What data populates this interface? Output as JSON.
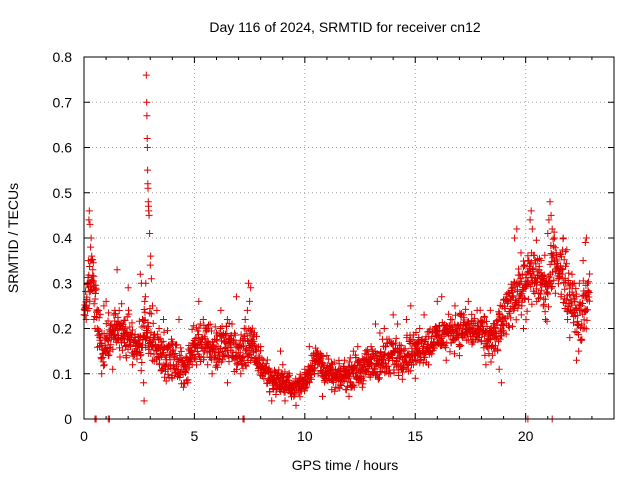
{
  "chart_data": {
    "type": "scatter",
    "title": "Day 116 of 2024, SRMTID for receiver cn12",
    "xlabel": "GPS time / hours",
    "ylabel": "SRMTID / TECUs",
    "xlim": [
      0,
      24
    ],
    "ylim": [
      0,
      0.8
    ],
    "xticks": [
      0,
      5,
      10,
      15,
      20
    ],
    "yticks": [
      0,
      0.1,
      0.2,
      0.3,
      0.4,
      0.5,
      0.6,
      0.7,
      0.8
    ],
    "xtick_labels": [
      "0",
      "5",
      "10",
      "15",
      "20"
    ],
    "ytick_labels": [
      "0",
      "0.1",
      "0.2",
      "0.3",
      "0.4",
      "0.5",
      "0.6",
      "0.7",
      "0.8"
    ],
    "grid": true,
    "marker": "+",
    "color": "#e00000",
    "series": [
      {
        "name": "SRMTID",
        "trend": {
          "x": [
            0,
            0.25,
            0.4,
            0.6,
            0.8,
            1.2,
            1.6,
            2.0,
            2.5,
            2.8,
            3.0,
            3.2,
            3.5,
            4.0,
            4.5,
            5.0,
            5.5,
            6.0,
            6.5,
            7.0,
            7.5,
            8.0,
            8.5,
            9.0,
            9.5,
            10.0,
            10.5,
            11.0,
            11.5,
            12.0,
            13.0,
            14.0,
            15.0,
            16.0,
            17.0,
            18.0,
            18.5,
            19.0,
            19.5,
            20.0,
            20.5,
            21.0,
            21.3,
            21.6,
            22.0,
            22.5,
            22.9
          ],
          "y": [
            0.24,
            0.3,
            0.33,
            0.22,
            0.15,
            0.18,
            0.2,
            0.18,
            0.16,
            0.2,
            0.18,
            0.16,
            0.15,
            0.13,
            0.11,
            0.16,
            0.18,
            0.15,
            0.17,
            0.14,
            0.17,
            0.12,
            0.09,
            0.08,
            0.07,
            0.08,
            0.14,
            0.1,
            0.09,
            0.1,
            0.12,
            0.14,
            0.15,
            0.18,
            0.2,
            0.19,
            0.17,
            0.22,
            0.28,
            0.3,
            0.32,
            0.28,
            0.36,
            0.33,
            0.28,
            0.22,
            0.28
          ],
          "spread": [
            0.03,
            0.06,
            0.06,
            0.06,
            0.05,
            0.05,
            0.05,
            0.05,
            0.05,
            0.07,
            0.06,
            0.05,
            0.05,
            0.05,
            0.04,
            0.05,
            0.05,
            0.05,
            0.05,
            0.05,
            0.05,
            0.04,
            0.03,
            0.03,
            0.02,
            0.03,
            0.03,
            0.03,
            0.03,
            0.03,
            0.04,
            0.05,
            0.04,
            0.04,
            0.04,
            0.04,
            0.05,
            0.05,
            0.06,
            0.07,
            0.07,
            0.06,
            0.06,
            0.07,
            0.07,
            0.07,
            0.07
          ]
        },
        "points": [
          [
            0.05,
            0.24
          ],
          [
            0.1,
            0.22
          ],
          [
            0.15,
            0.3
          ],
          [
            0.2,
            0.35
          ],
          [
            0.22,
            0.44
          ],
          [
            0.24,
            0.46
          ],
          [
            0.27,
            0.43
          ],
          [
            0.3,
            0.38
          ],
          [
            0.32,
            0.4
          ],
          [
            0.35,
            0.36
          ],
          [
            0.4,
            0.33
          ],
          [
            0.42,
            0.29
          ],
          [
            0.45,
            0.22
          ],
          [
            0.5,
            0.2
          ],
          [
            0.6,
            0.2
          ],
          [
            0.7,
            0.16
          ],
          [
            0.8,
            0.1
          ],
          [
            0.9,
            0.25
          ],
          [
            1.0,
            0.26
          ],
          [
            1.1,
            0.14
          ],
          [
            1.3,
            0.11
          ],
          [
            1.4,
            0.24
          ],
          [
            1.5,
            0.33
          ],
          [
            1.6,
            0.21
          ],
          [
            1.7,
            0.18
          ],
          [
            1.9,
            0.14
          ],
          [
            2.0,
            0.29
          ],
          [
            2.1,
            0.16
          ],
          [
            2.2,
            0.12
          ],
          [
            2.4,
            0.15
          ],
          [
            2.5,
            0.16
          ],
          [
            2.55,
            0.32
          ],
          [
            2.6,
            0.3
          ],
          [
            2.65,
            0.22
          ],
          [
            2.7,
            0.08
          ],
          [
            2.72,
            0.04
          ],
          [
            2.75,
            0.26
          ],
          [
            2.78,
            0.27
          ],
          [
            2.8,
            0.3
          ],
          [
            2.82,
            0.76
          ],
          [
            2.84,
            0.7
          ],
          [
            2.85,
            0.67
          ],
          [
            2.86,
            0.62
          ],
          [
            2.87,
            0.6
          ],
          [
            2.88,
            0.55
          ],
          [
            2.89,
            0.52
          ],
          [
            2.9,
            0.51
          ],
          [
            2.91,
            0.48
          ],
          [
            2.92,
            0.47
          ],
          [
            2.93,
            0.46
          ],
          [
            2.95,
            0.45
          ],
          [
            2.97,
            0.41
          ],
          [
            3.0,
            0.34
          ],
          [
            3.02,
            0.36
          ],
          [
            3.05,
            0.31
          ],
          [
            3.1,
            0.25
          ],
          [
            3.3,
            0.24
          ],
          [
            3.4,
            0.2
          ],
          [
            3.5,
            0.17
          ],
          [
            3.6,
            0.22
          ],
          [
            3.8,
            0.11
          ],
          [
            4.0,
            0.15
          ],
          [
            4.2,
            0.12
          ],
          [
            4.3,
            0.22
          ],
          [
            4.5,
            0.07
          ],
          [
            4.7,
            0.08
          ],
          [
            4.9,
            0.12
          ],
          [
            5.2,
            0.26
          ],
          [
            5.4,
            0.22
          ],
          [
            5.6,
            0.12
          ],
          [
            5.8,
            0.1
          ],
          [
            6.0,
            0.19
          ],
          [
            6.2,
            0.24
          ],
          [
            6.4,
            0.15
          ],
          [
            6.5,
            0.08
          ],
          [
            6.7,
            0.21
          ],
          [
            6.9,
            0.27
          ],
          [
            7.1,
            0.1
          ],
          [
            7.3,
            0.22
          ],
          [
            7.4,
            0.24
          ],
          [
            7.45,
            0.3
          ],
          [
            7.5,
            0.26
          ],
          [
            7.55,
            0.29
          ],
          [
            7.6,
            0.16
          ],
          [
            7.8,
            0.12
          ],
          [
            8.0,
            0.16
          ],
          [
            8.2,
            0.1
          ],
          [
            8.4,
            0.06
          ],
          [
            8.5,
            0.04
          ],
          [
            8.7,
            0.07
          ],
          [
            8.9,
            0.15
          ],
          [
            9.0,
            0.12
          ],
          [
            9.1,
            0.04
          ],
          [
            9.3,
            0.08
          ],
          [
            9.5,
            0.05
          ],
          [
            9.6,
            0.03
          ],
          [
            9.8,
            0.09
          ],
          [
            10.0,
            0.11
          ],
          [
            10.2,
            0.16
          ],
          [
            10.4,
            0.14
          ],
          [
            10.6,
            0.1
          ],
          [
            10.8,
            0.05
          ],
          [
            11.0,
            0.14
          ],
          [
            11.2,
            0.11
          ],
          [
            11.4,
            0.07
          ],
          [
            11.6,
            0.09
          ],
          [
            11.8,
            0.13
          ],
          [
            12.0,
            0.05
          ],
          [
            12.2,
            0.15
          ],
          [
            12.4,
            0.16
          ],
          [
            12.6,
            0.07
          ],
          [
            12.8,
            0.13
          ],
          [
            13.0,
            0.16
          ],
          [
            13.2,
            0.21
          ],
          [
            13.4,
            0.19
          ],
          [
            13.6,
            0.2
          ],
          [
            13.8,
            0.1
          ],
          [
            14.0,
            0.23
          ],
          [
            14.2,
            0.21
          ],
          [
            14.4,
            0.11
          ],
          [
            14.6,
            0.22
          ],
          [
            14.8,
            0.25
          ],
          [
            15.0,
            0.09
          ],
          [
            15.2,
            0.2
          ],
          [
            15.4,
            0.23
          ],
          [
            15.6,
            0.12
          ],
          [
            15.8,
            0.19
          ],
          [
            16.0,
            0.26
          ],
          [
            16.2,
            0.27
          ],
          [
            16.4,
            0.13
          ],
          [
            16.6,
            0.22
          ],
          [
            16.8,
            0.25
          ],
          [
            17.0,
            0.14
          ],
          [
            17.2,
            0.23
          ],
          [
            17.4,
            0.26
          ],
          [
            17.6,
            0.17
          ],
          [
            17.8,
            0.24
          ],
          [
            18.0,
            0.21
          ],
          [
            18.2,
            0.12
          ],
          [
            18.4,
            0.24
          ],
          [
            18.6,
            0.15
          ],
          [
            18.8,
            0.11
          ],
          [
            18.9,
            0.08
          ],
          [
            19.0,
            0.19
          ],
          [
            19.2,
            0.26
          ],
          [
            19.4,
            0.28
          ],
          [
            19.5,
            0.4
          ],
          [
            19.6,
            0.42
          ],
          [
            19.7,
            0.3
          ],
          [
            19.8,
            0.23
          ],
          [
            19.9,
            0.2
          ],
          [
            20.0,
            0.3
          ],
          [
            20.1,
            0.35
          ],
          [
            20.2,
            0.44
          ],
          [
            20.25,
            0.46
          ],
          [
            20.3,
            0.42
          ],
          [
            20.4,
            0.3
          ],
          [
            20.5,
            0.26
          ],
          [
            20.6,
            0.33
          ],
          [
            20.7,
            0.35
          ],
          [
            20.8,
            0.25
          ],
          [
            20.9,
            0.22
          ],
          [
            21.0,
            0.41
          ],
          [
            21.05,
            0.44
          ],
          [
            21.1,
            0.48
          ],
          [
            21.15,
            0.45
          ],
          [
            21.2,
            0.42
          ],
          [
            21.3,
            0.4
          ],
          [
            21.4,
            0.36
          ],
          [
            21.5,
            0.31
          ],
          [
            21.6,
            0.27
          ],
          [
            21.7,
            0.4
          ],
          [
            21.8,
            0.37
          ],
          [
            21.9,
            0.22
          ],
          [
            22.0,
            0.18
          ],
          [
            22.1,
            0.32
          ],
          [
            22.2,
            0.3
          ],
          [
            22.3,
            0.13
          ],
          [
            22.4,
            0.15
          ],
          [
            22.5,
            0.24
          ],
          [
            22.6,
            0.35
          ],
          [
            22.7,
            0.39
          ],
          [
            22.75,
            0.4
          ],
          [
            22.8,
            0.3
          ]
        ],
        "zero_points": [
          0.5,
          0.55,
          1.1,
          1.15,
          7.2,
          7.25,
          20.0,
          20.1,
          21.2
        ]
      }
    ]
  }
}
